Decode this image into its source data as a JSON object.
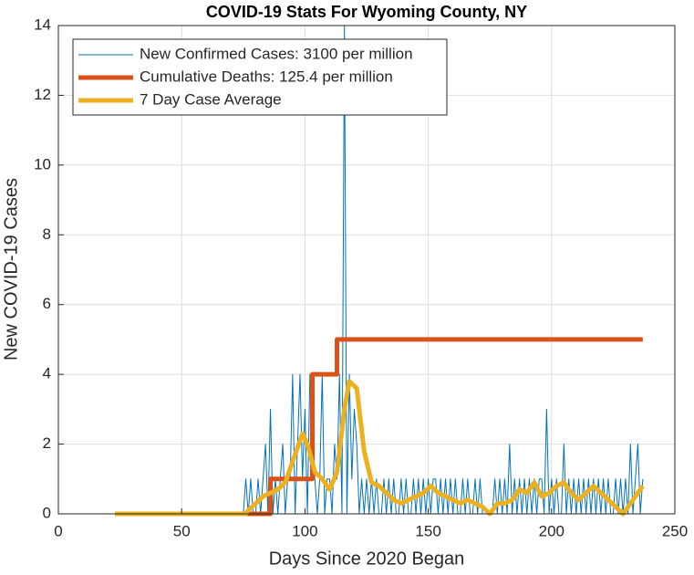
{
  "chart_data": {
    "type": "line",
    "title": "COVID-19 Stats For Wyoming County, NY",
    "x_label": "Days Since 2020 Began",
    "y_label": "New COVID-19 Cases",
    "xlim": [
      0,
      250
    ],
    "xticks": [
      0,
      50,
      100,
      150,
      200,
      250
    ],
    "ylim": [
      0,
      14
    ],
    "yticks": [
      0,
      2,
      4,
      6,
      8,
      10,
      12,
      14
    ],
    "grid": true,
    "legend": "upper left",
    "x": [
      23,
      24,
      25,
      26,
      27,
      28,
      29,
      30,
      31,
      32,
      33,
      34,
      35,
      36,
      37,
      38,
      39,
      40,
      41,
      42,
      43,
      44,
      45,
      46,
      47,
      48,
      49,
      50,
      51,
      52,
      53,
      54,
      55,
      56,
      57,
      58,
      59,
      60,
      61,
      62,
      63,
      64,
      65,
      66,
      67,
      68,
      69,
      70,
      71,
      72,
      73,
      74,
      75,
      76,
      77,
      78,
      79,
      80,
      81,
      82,
      83,
      84,
      85,
      86,
      87,
      88,
      89,
      90,
      91,
      92,
      93,
      94,
      95,
      96,
      97,
      98,
      99,
      100,
      101,
      102,
      103,
      104,
      105,
      106,
      107,
      108,
      109,
      110,
      111,
      112,
      113,
      114,
      115,
      116,
      117,
      118,
      119,
      120,
      121,
      122,
      123,
      124,
      125,
      126,
      127,
      128,
      129,
      130,
      131,
      132,
      133,
      134,
      135,
      136,
      137,
      138,
      139,
      140,
      141,
      142,
      143,
      144,
      145,
      146,
      147,
      148,
      149,
      150,
      151,
      152,
      153,
      154,
      155,
      156,
      157,
      158,
      159,
      160,
      161,
      162,
      163,
      164,
      165,
      166,
      167,
      168,
      169,
      170,
      171,
      172,
      173,
      174,
      175,
      176,
      177,
      178,
      179,
      180,
      181,
      182,
      183,
      184,
      185,
      186,
      187,
      188,
      189,
      190,
      191,
      192,
      193,
      194,
      195,
      196,
      197,
      198,
      199,
      200,
      201,
      202,
      203,
      204,
      205,
      206,
      207,
      208,
      209,
      210,
      211,
      212,
      213,
      214,
      215,
      216,
      217,
      218,
      219,
      220,
      221,
      222,
      223,
      224,
      225,
      226,
      227,
      228,
      229,
      230,
      231,
      232,
      233,
      234,
      235,
      236,
      237
    ],
    "series": [
      {
        "name": "New Confirmed Cases: 3100 per million",
        "color": "#0072bd",
        "width": 1,
        "values": [
          0,
          0,
          0,
          0,
          0,
          0,
          0,
          0,
          0,
          0,
          0,
          0,
          0,
          0,
          0,
          0,
          0,
          0,
          0,
          0,
          0,
          0,
          0,
          0,
          0,
          0,
          0,
          0,
          0,
          0,
          0,
          0,
          0,
          0,
          0,
          0,
          0,
          0,
          0,
          0,
          0,
          0,
          0,
          0,
          0,
          0,
          0,
          0,
          0,
          0,
          0,
          0,
          0,
          1,
          0,
          1,
          0,
          0,
          1,
          0,
          1,
          2,
          0,
          3,
          0,
          1,
          0,
          1,
          2,
          0,
          1,
          1,
          4,
          0,
          2,
          4,
          1,
          3,
          0,
          4,
          2,
          1,
          0,
          1,
          4,
          0,
          1,
          1,
          0,
          2,
          1,
          4,
          0,
          14,
          0,
          4,
          1,
          3,
          2,
          0,
          1,
          0,
          1,
          0,
          1,
          0,
          1,
          0,
          0,
          1,
          0,
          1,
          0,
          1,
          0,
          0,
          1,
          0,
          1,
          0,
          0,
          1,
          0,
          1,
          0,
          1,
          0,
          1,
          0,
          1,
          1,
          0,
          1,
          0,
          1,
          0,
          1,
          0,
          1,
          0,
          0,
          1,
          0,
          1,
          0,
          0,
          1,
          0,
          1,
          0,
          0,
          0,
          0,
          0,
          1,
          0,
          1,
          0,
          1,
          0,
          2,
          0,
          1,
          0,
          1,
          0,
          1,
          0,
          1,
          0,
          1,
          0,
          1,
          1,
          0,
          3,
          0,
          1,
          0,
          1,
          0,
          0,
          2,
          0,
          1,
          0,
          1,
          0,
          1,
          0,
          1,
          0,
          1,
          0,
          1,
          0,
          1,
          0,
          1,
          0,
          1,
          0,
          0,
          1,
          0,
          1,
          0,
          1,
          0,
          2,
          0,
          1,
          2,
          0,
          1
        ]
      },
      {
        "name": "Cumulative Deaths: 125.4 per million",
        "color": "#d95319",
        "width": 5,
        "x": [
          23,
          86,
          86,
          103,
          103,
          113,
          113,
          237
        ],
        "values": [
          0,
          0,
          1,
          1,
          4,
          4,
          5,
          5
        ]
      },
      {
        "name": "7 Day Case Average",
        "color": "#edb120",
        "width": 5,
        "x": [
          23,
          76,
          77,
          80,
          83,
          86,
          89,
          92,
          95,
          98,
          99,
          101,
          104,
          107,
          110,
          113,
          116,
          118,
          121,
          124,
          127,
          130,
          133,
          136,
          139,
          142,
          145,
          148,
          151,
          154,
          157,
          160,
          163,
          166,
          169,
          172,
          175,
          178,
          181,
          184,
          187,
          190,
          193,
          196,
          199,
          202,
          205,
          208,
          211,
          214,
          217,
          220,
          223,
          226,
          229,
          232,
          235,
          237
        ],
        "values": [
          0,
          0,
          0.1,
          0.3,
          0.5,
          0.6,
          0.7,
          0.9,
          1.5,
          2.1,
          2.3,
          2.0,
          1.2,
          1.0,
          0.7,
          1.2,
          3.0,
          3.8,
          3.6,
          1.8,
          0.9,
          0.8,
          0.6,
          0.4,
          0.3,
          0.4,
          0.5,
          0.6,
          0.8,
          0.6,
          0.5,
          0.4,
          0.3,
          0.4,
          0.3,
          0.2,
          0,
          0.3,
          0.3,
          0.4,
          0.7,
          0.6,
          0.9,
          0.5,
          0.6,
          0.8,
          0.9,
          0.6,
          0.4,
          0.6,
          0.8,
          0.6,
          0.4,
          0.2,
          0,
          0.3,
          0.6,
          0.8
        ]
      }
    ]
  }
}
